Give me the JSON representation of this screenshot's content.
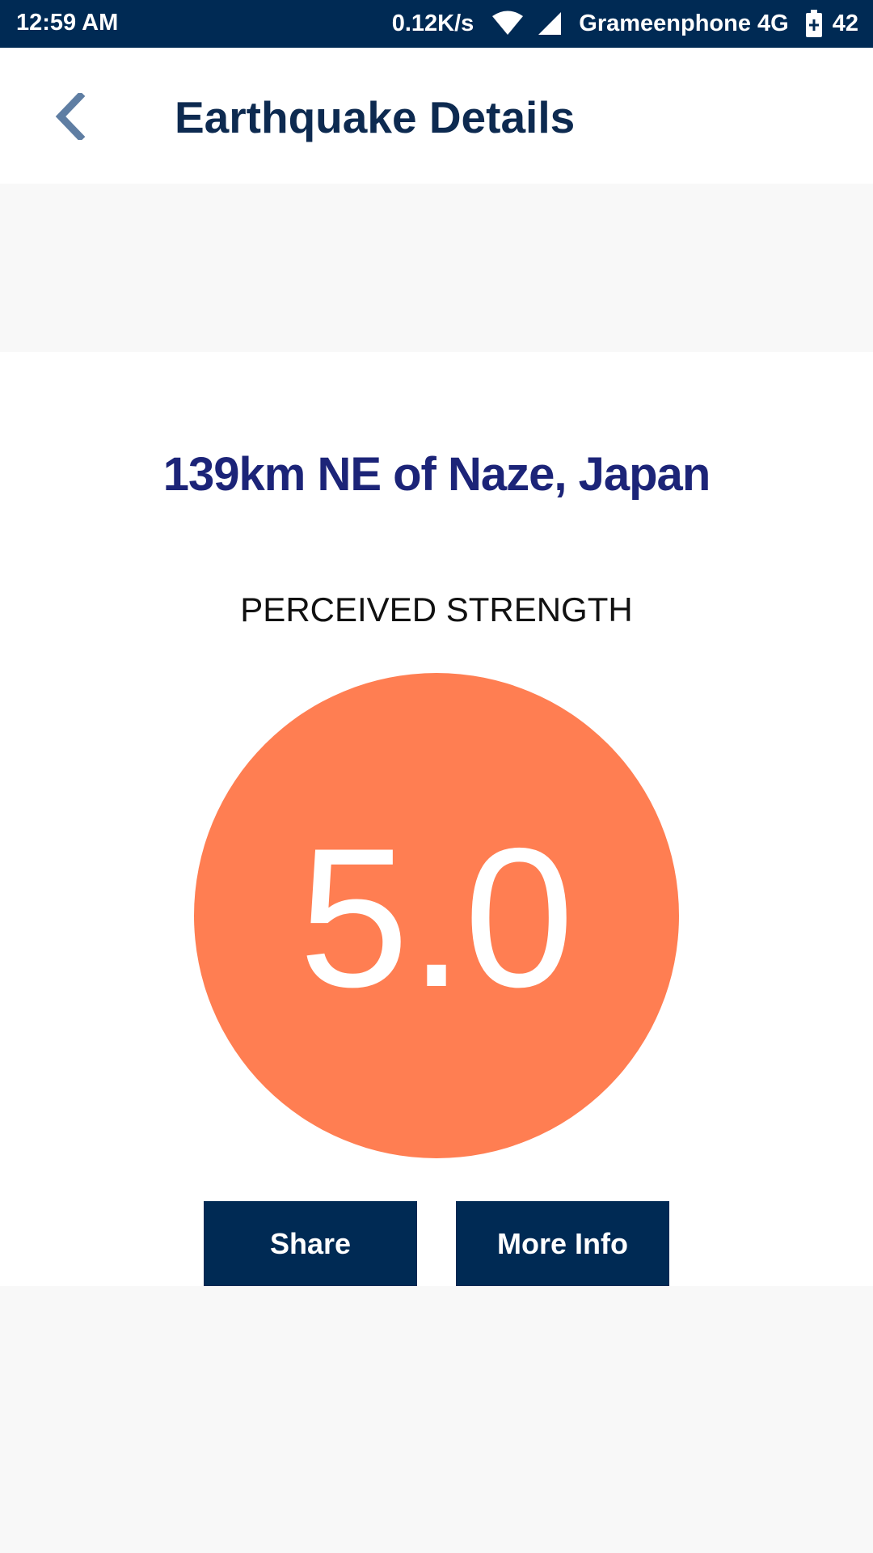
{
  "status_bar": {
    "time": "12:59 AM",
    "net_speed": "0.12K/s",
    "carrier": "Grameenphone 4G",
    "battery": "42",
    "icons": [
      "wifi-icon",
      "signal-icon",
      "battery-icon"
    ]
  },
  "header": {
    "title": "Earthquake Details",
    "back_icon": "chevron-left-icon"
  },
  "earthquake": {
    "location": "139km NE of Naze, Japan",
    "strength_label": "PERCEIVED STRENGTH",
    "magnitude": "5.0"
  },
  "actions": {
    "share_label": "Share",
    "more_info_label": "More Info"
  },
  "colors": {
    "primary_dark": "#002a54",
    "title_text": "#0d2a50",
    "location_text": "#1c2478",
    "magnitude_circle": "#ff7e52",
    "background": "#f8f8f8"
  }
}
